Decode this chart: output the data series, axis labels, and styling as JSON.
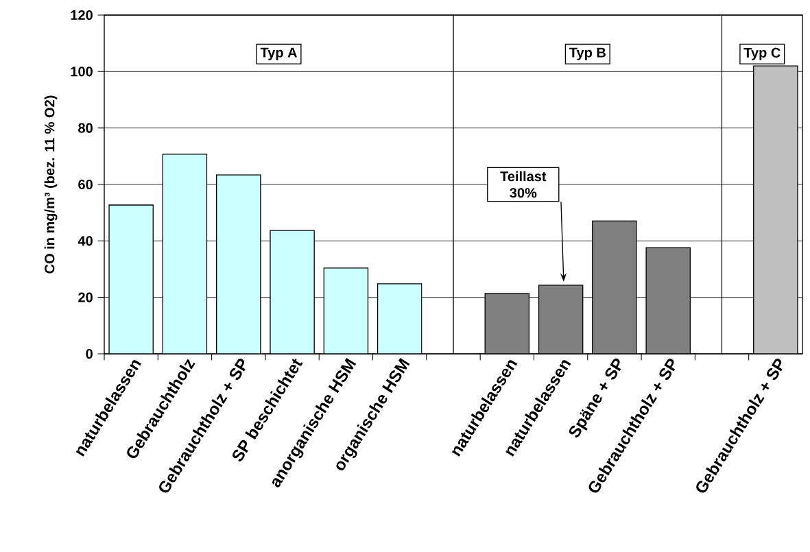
{
  "chart_data": {
    "type": "bar",
    "ylabel": "CO in mg/m³ (bez. 11 % O2)",
    "categories": [
      "naturbelassen",
      "Gebrauchtholz",
      "Gebrauchtholz + SP",
      "SP beschichtet",
      "anorganische HSM",
      "organische HSM",
      null,
      "naturbelassen",
      "naturbelassen",
      "Späne + SP",
      "Gebrauchtholz + SP",
      null,
      "Gebrauchtholz + SP"
    ],
    "values": [
      52.7,
      70.7,
      63.4,
      43.7,
      30.4,
      24.8,
      null,
      21.4,
      24.3,
      47.1,
      37.6,
      null,
      102.0
    ],
    "colors": [
      "#ccffff",
      "#ccffff",
      "#ccffff",
      "#ccffff",
      "#ccffff",
      "#ccffff",
      null,
      "#808080",
      "#808080",
      "#808080",
      "#808080",
      null,
      "#c0c0c0"
    ],
    "ylim": [
      0,
      120
    ],
    "yticks": [
      0,
      20,
      40,
      60,
      80,
      100,
      120
    ],
    "grid": "y",
    "annotations": [
      "Typ A",
      "Typ B",
      "Typ C",
      "Teillast 30%"
    ]
  }
}
